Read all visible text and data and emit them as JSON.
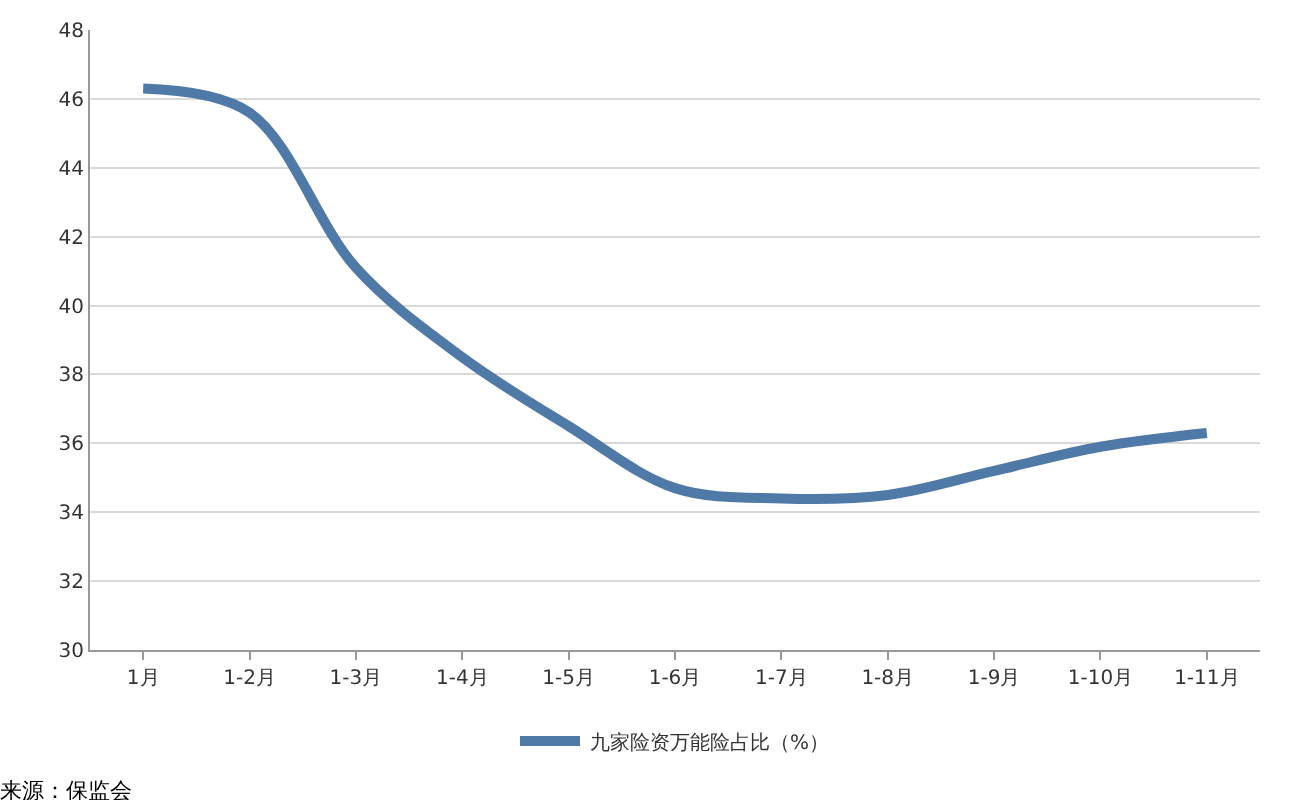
{
  "chart_data": {
    "type": "line",
    "categories": [
      "1月",
      "1-2月",
      "1-3月",
      "1-4月",
      "1-5月",
      "1-6月",
      "1-7月",
      "1-8月",
      "1-9月",
      "1-10月",
      "1-11月"
    ],
    "series": [
      {
        "name": "九家险资万能险占比（%）",
        "color": "#4f79a7",
        "values": [
          46.3,
          45.6,
          41.1,
          38.5,
          36.5,
          34.7,
          34.4,
          34.5,
          35.2,
          35.9,
          36.3
        ]
      }
    ],
    "ylim": [
      30,
      48
    ],
    "yticks": [
      30,
      32,
      34,
      36,
      38,
      40,
      42,
      44,
      46,
      48
    ],
    "grid": "y",
    "legend": "bottom",
    "marker": "none",
    "line_style": "solid",
    "annotations": [
      "来源：保监会"
    ]
  }
}
